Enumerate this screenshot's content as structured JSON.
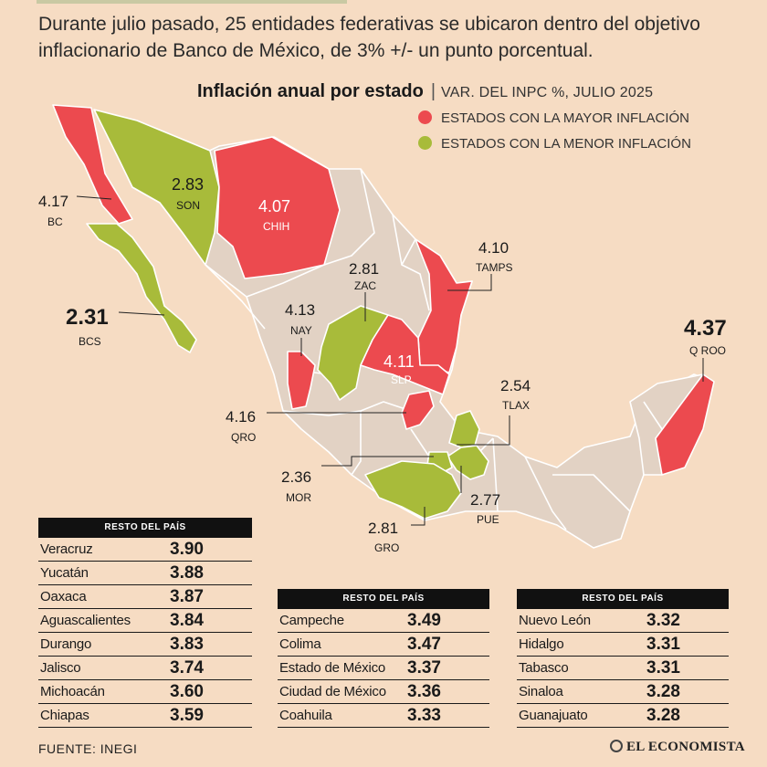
{
  "intro": "Durante julio pasado, 25 entidades federativas se ubicaron dentro del objetivo inflacionario de Banco de México, de 3% +/- un punto porcentual.",
  "title": "Inflación anual por estado",
  "separator": "|",
  "subtitle": "VAR. DEL INPC %, JULIO 2025",
  "legend": [
    {
      "label": "ESTADOS CON LA MAYOR INFLACIÓN",
      "color": "#ec4a4f"
    },
    {
      "label": "ESTADOS CON LA MENOR INFLACIÓN",
      "color": "#a8bb3a"
    }
  ],
  "colors": {
    "high": "#ec4a4f",
    "low": "#a8bb3a",
    "rest": "#e2d2c4",
    "border": "#ffffff",
    "background": "#f6dcc3"
  },
  "map_labels": [
    {
      "value": "4.17",
      "code": "BC",
      "group": "high"
    },
    {
      "value": "2.83",
      "code": "SON",
      "group": "low"
    },
    {
      "value": "4.07",
      "code": "CHIH",
      "group": "high"
    },
    {
      "value": "2.81",
      "code": "ZAC",
      "group": "low"
    },
    {
      "value": "4.10",
      "code": "TAMPS",
      "group": "high"
    },
    {
      "value": "2.31",
      "code": "BCS",
      "group": "low"
    },
    {
      "value": "4.13",
      "code": "NAY",
      "group": "high"
    },
    {
      "value": "4.11",
      "code": "SLP",
      "group": "high"
    },
    {
      "value": "4.37",
      "code": "Q ROO",
      "group": "high"
    },
    {
      "value": "2.54",
      "code": "TLAX",
      "group": "low"
    },
    {
      "value": "4.16",
      "code": "QRO",
      "group": "high"
    },
    {
      "value": "2.36",
      "code": "MOR",
      "group": "low"
    },
    {
      "value": "2.77",
      "code": "PUE",
      "group": "low"
    },
    {
      "value": "2.81",
      "code": "GRO",
      "group": "low"
    }
  ],
  "tables": [
    {
      "header": "RESTO DEL PAÍS",
      "rows": [
        {
          "name": "Veracruz",
          "value": "3.90"
        },
        {
          "name": "Yucatán",
          "value": "3.88"
        },
        {
          "name": "Oaxaca",
          "value": "3.87"
        },
        {
          "name": "Aguascalientes",
          "value": "3.84"
        },
        {
          "name": "Durango",
          "value": "3.83"
        },
        {
          "name": "Jalisco",
          "value": "3.74"
        },
        {
          "name": "Michoacán",
          "value": "3.60"
        },
        {
          "name": "Chiapas",
          "value": "3.59"
        }
      ]
    },
    {
      "header": "RESTO DEL PAÍS",
      "rows": [
        {
          "name": "Campeche",
          "value": "3.49"
        },
        {
          "name": "Colima",
          "value": "3.47"
        },
        {
          "name": "Estado de México",
          "value": "3.37"
        },
        {
          "name": "Ciudad de México",
          "value": "3.36"
        },
        {
          "name": "Coahuila",
          "value": "3.33"
        }
      ]
    },
    {
      "header": "RESTO DEL PAÍS",
      "rows": [
        {
          "name": "Nuevo León",
          "value": "3.32"
        },
        {
          "name": "Hidalgo",
          "value": "3.31"
        },
        {
          "name": "Tabasco",
          "value": "3.31"
        },
        {
          "name": "Sinaloa",
          "value": "3.28"
        },
        {
          "name": "Guanajuato",
          "value": "3.28"
        }
      ]
    }
  ],
  "source": "FUENTE: INEGI",
  "logo": "EL ECONOMISTA"
}
